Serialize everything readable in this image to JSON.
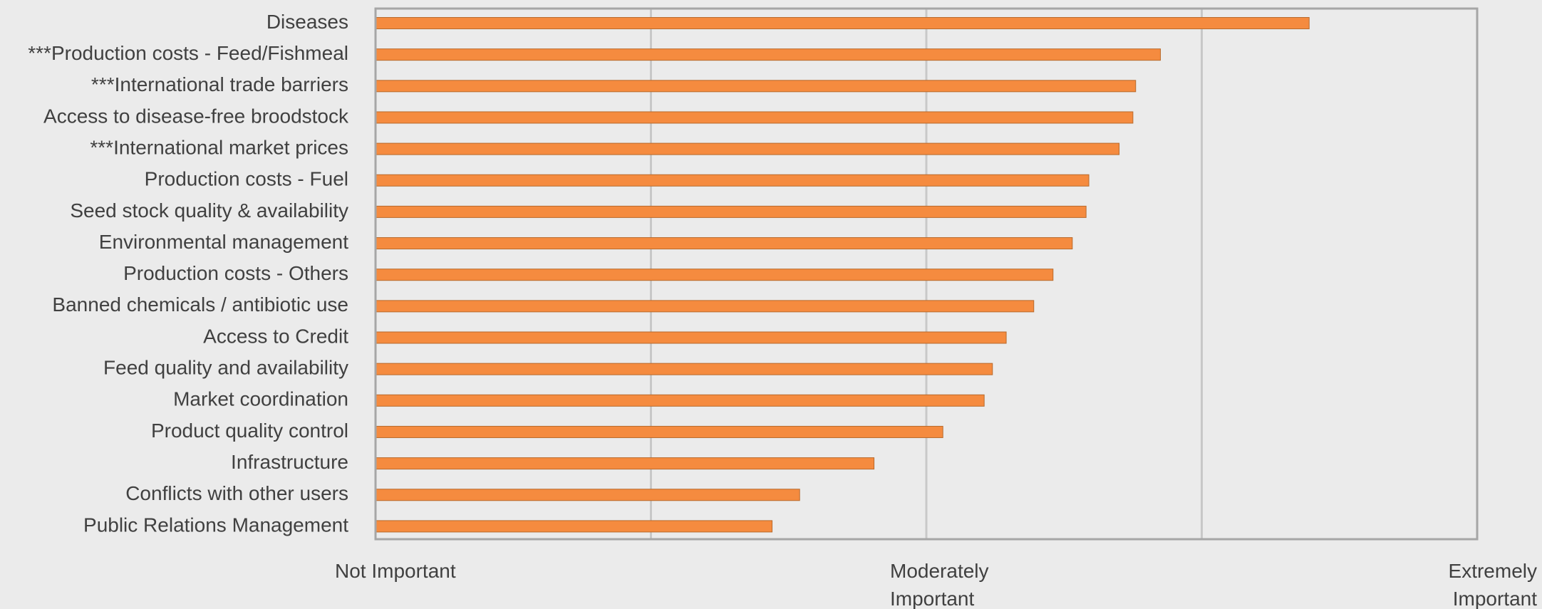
{
  "chart_data": {
    "type": "bar",
    "orientation": "horizontal",
    "title": "",
    "xlabel": "",
    "ylabel": "",
    "categories": [
      "Diseases",
      "***Production costs - Feed/Fishmeal",
      "***International trade barriers",
      "Access to disease-free broodstock",
      "***International market prices",
      "Production costs - Fuel",
      "Seed stock quality & availability",
      "Environmental management",
      "Production costs - Others",
      "Banned chemicals / antibiotic use",
      "Access to Credit",
      "Feed quality and availability",
      "Market coordination",
      "Product quality control",
      "Infrastructure",
      "Conflicts with other users",
      "Public Relations Management"
    ],
    "values": [
      3.39,
      2.85,
      2.76,
      2.75,
      2.7,
      2.59,
      2.58,
      2.53,
      2.46,
      2.39,
      2.29,
      2.24,
      2.21,
      2.06,
      1.81,
      1.54,
      1.44
    ],
    "xlim": [
      0,
      4
    ],
    "xticks": [
      {
        "value": 0,
        "label": [
          "Not Important"
        ]
      },
      {
        "value": 2,
        "label": [
          "Moderately",
          "Important"
        ]
      },
      {
        "value": 4,
        "label": [
          "Extremely",
          "Important"
        ]
      }
    ],
    "grid": true,
    "legend": "none",
    "bar_color": "#f58b3f"
  }
}
